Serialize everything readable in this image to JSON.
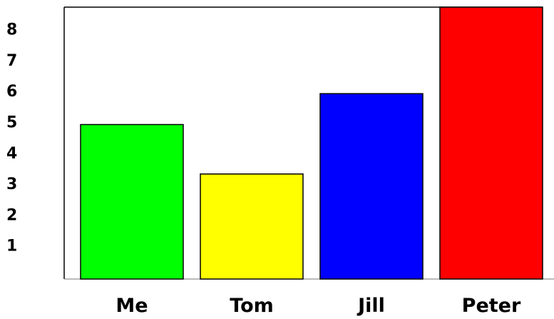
{
  "chart_data": {
    "type": "bar",
    "title": "",
    "xlabel": "",
    "ylabel": "",
    "categories": [
      "Me",
      "Tom",
      "Jill",
      "Peter"
    ],
    "values": [
      5,
      3.4,
      6,
      8.8
    ],
    "colors": [
      "#00ff00",
      "#ffff00",
      "#0000ff",
      "#ff0000"
    ],
    "yticks": [
      "1",
      "2",
      "3",
      "4",
      "5",
      "6",
      "7",
      "8"
    ],
    "ylim": [
      0,
      8.8
    ],
    "grid": false,
    "legend": "none"
  }
}
